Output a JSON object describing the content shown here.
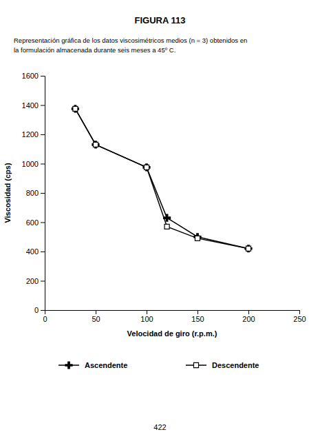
{
  "chart_data": {
    "type": "line",
    "title": "FIGURA 113",
    "subtitle": [
      "Representación gráfica de los datos viscosimétricos medios (n = 3) obtenidos en",
      "la formulación almacenada durante seis meses a 45º C."
    ],
    "annotations": [
      "422"
    ],
    "x_label": "Velocidad de giro (r.p.m.)",
    "y_label": "Viscosidad (cps)",
    "x": [
      30,
      50,
      100,
      120,
      150,
      200
    ],
    "series": [
      {
        "name": "Ascendente",
        "color": "#000000",
        "marker": "plus",
        "values": [
          1375,
          1130,
          975,
          630,
          500,
          420
        ]
      },
      {
        "name": "Descendente",
        "color": "#000000",
        "marker": "square",
        "values": [
          1375,
          1130,
          975,
          570,
          490,
          420
        ]
      }
    ],
    "xlim": [
      0,
      250
    ],
    "ylim": [
      0,
      1600
    ],
    "xticks": [
      0,
      50,
      100,
      150,
      200,
      250
    ],
    "yticks": [
      0,
      200,
      400,
      600,
      800,
      1000,
      1200,
      1400,
      1600
    ],
    "grid": false,
    "legend": "bottom"
  }
}
